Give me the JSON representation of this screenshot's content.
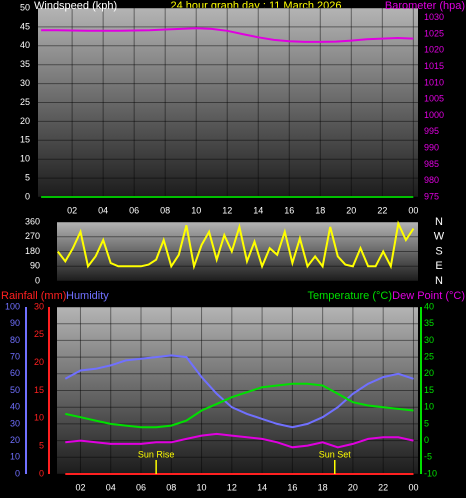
{
  "chart_data": [
    {
      "type": "line",
      "title": "24 hour graph day : 11 March 2026",
      "x": [
        0,
        1,
        2,
        3,
        4,
        5,
        6,
        7,
        8,
        9,
        10,
        11,
        12,
        13,
        14,
        15,
        16,
        17,
        18,
        19,
        20,
        21,
        22,
        23,
        24
      ],
      "xlim": [
        -0.2,
        24.3
      ],
      "xticks": [
        {
          "value": 2,
          "label": "02"
        },
        {
          "value": 4,
          "label": "04"
        },
        {
          "value": 6,
          "label": "06"
        },
        {
          "value": 8,
          "label": "08"
        },
        10,
        12,
        14,
        16,
        18,
        20,
        22,
        {
          "value": 24,
          "label": "00"
        }
      ],
      "ylim": [
        0,
        50
      ],
      "yticks": [
        0,
        5,
        10,
        15,
        20,
        25,
        30,
        35,
        40,
        45,
        50
      ],
      "y2lim": [
        975,
        1033
      ],
      "y2ticks": [
        975,
        980,
        985,
        990,
        995,
        1000,
        1005,
        1010,
        1015,
        1020,
        1025,
        1030
      ],
      "grid": true,
      "series": [
        {
          "name": "Windspeed (kph)",
          "color": "#00c000",
          "values": [
            0,
            0,
            0,
            0,
            0,
            0,
            0,
            0,
            0,
            0,
            0,
            0,
            0,
            0,
            0,
            0,
            0,
            0,
            0,
            0,
            0,
            0,
            0,
            0,
            0
          ]
        },
        {
          "name": "Barometer (hpa)",
          "color": "#e000e0",
          "axis": "y2",
          "values": [
            1026.2,
            1026.2,
            1026.1,
            1026.0,
            1026.0,
            1026.0,
            1026.1,
            1026.2,
            1026.4,
            1026.6,
            1026.8,
            1026.6,
            1026.0,
            1025.0,
            1024.0,
            1023.2,
            1022.8,
            1022.6,
            1022.6,
            1022.7,
            1023.0,
            1023.4,
            1023.6,
            1023.8,
            1023.6
          ]
        }
      ]
    },
    {
      "type": "line",
      "x": [
        0.5,
        1,
        1.5,
        2,
        2.5,
        3,
        3.5,
        4,
        4.5,
        5,
        5.5,
        6,
        6.5,
        7,
        7.5,
        8,
        8.5,
        9,
        9.5,
        10,
        10.5,
        11,
        11.5,
        12,
        12.5,
        13,
        13.5,
        14,
        14.5,
        15,
        15.5,
        16,
        16.5,
        17,
        17.5,
        18,
        18.5,
        19,
        19.5,
        20,
        20.5,
        21,
        21.5,
        22,
        22.5,
        23,
        23.5,
        24
      ],
      "xlim": [
        0.45,
        24.3
      ],
      "ylim": [
        0,
        360
      ],
      "yticks": [
        0,
        90,
        180,
        270,
        360
      ],
      "y2lim": [
        0,
        360
      ],
      "y2ticks": [
        {
          "value": 0,
          "label": "N"
        },
        {
          "value": 90,
          "label": "E"
        },
        {
          "value": 180,
          "label": "S"
        },
        {
          "value": 270,
          "label": "W"
        },
        {
          "value": 360,
          "label": "N"
        }
      ],
      "grid": true,
      "series": [
        {
          "color": "#ffff00",
          "values": [
            180,
            120,
            200,
            300,
            90,
            150,
            250,
            110,
            90,
            90,
            90,
            90,
            100,
            130,
            250,
            90,
            160,
            340,
            90,
            220,
            300,
            130,
            280,
            180,
            330,
            120,
            240,
            90,
            200,
            160,
            300,
            110,
            260,
            90,
            150,
            90,
            330,
            150,
            100,
            90,
            200,
            90,
            90,
            180,
            90,
            350,
            250,
            320
          ]
        }
      ]
    },
    {
      "type": "line",
      "x": [
        1,
        2,
        3,
        4,
        5,
        6,
        7,
        8,
        9,
        10,
        11,
        12,
        13,
        14,
        15,
        16,
        17,
        18,
        19,
        20,
        21,
        22,
        23,
        24
      ],
      "xlim": [
        0.45,
        24.3
      ],
      "xticks": [
        {
          "value": 2,
          "label": "02"
        },
        {
          "value": 4,
          "label": "04"
        },
        {
          "value": 6,
          "label": "06"
        },
        {
          "value": 8,
          "label": "08"
        },
        10,
        12,
        14,
        16,
        18,
        20,
        22,
        {
          "value": 24,
          "label": "00"
        }
      ],
      "ylim": [
        0,
        100
      ],
      "yticks": [
        0,
        10,
        20,
        30,
        40,
        50,
        60,
        70,
        80,
        90,
        100
      ],
      "y3lim": [
        0,
        30
      ],
      "y3ticks": [
        0,
        5,
        10,
        15,
        20,
        25,
        30
      ],
      "y2lim": [
        -10,
        40
      ],
      "y2ticks": [
        -10,
        -5,
        0,
        5,
        10,
        15,
        20,
        25,
        30,
        35,
        40
      ],
      "grid": true,
      "series": [
        {
          "name": "Rainfall (mm)",
          "color": "#ff2020",
          "axis": "y3",
          "values": [
            0,
            0,
            0,
            0,
            0,
            0,
            0,
            0,
            0,
            0,
            0,
            0,
            0,
            0,
            0,
            0,
            0,
            0,
            0,
            0,
            0,
            0,
            0,
            0
          ]
        },
        {
          "name": "Humidity",
          "color": "#7070ff",
          "values": [
            57,
            62,
            63,
            65,
            68,
            69,
            70,
            71,
            70,
            58,
            48,
            40,
            36,
            33,
            30,
            28,
            30,
            34,
            40,
            48,
            54,
            58,
            60,
            57
          ]
        },
        {
          "name": "Temperature (°C)",
          "color": "#00e000",
          "axis": "y2",
          "values": [
            8,
            7,
            6,
            5,
            4.5,
            4,
            4,
            4.5,
            6,
            9,
            11,
            13,
            14.5,
            16,
            16.5,
            17,
            17,
            16.5,
            14,
            11.5,
            10.5,
            10,
            9.5,
            9
          ]
        },
        {
          "name": "Dew Point (°C)",
          "color": "#e000e0",
          "axis": "y2",
          "values": [
            -0.5,
            0,
            -0.5,
            -1,
            -1,
            -1,
            -0.5,
            -0.5,
            0.5,
            1.5,
            2,
            1.5,
            1,
            0.5,
            -0.5,
            -2,
            -1.5,
            -0.5,
            -2,
            -1,
            0.5,
            1,
            1,
            0
          ]
        }
      ],
      "annotations": [
        {
          "text": "Sun Rise",
          "x": 7.0
        },
        {
          "text": "Sun Set",
          "x": 18.8
        }
      ]
    }
  ]
}
